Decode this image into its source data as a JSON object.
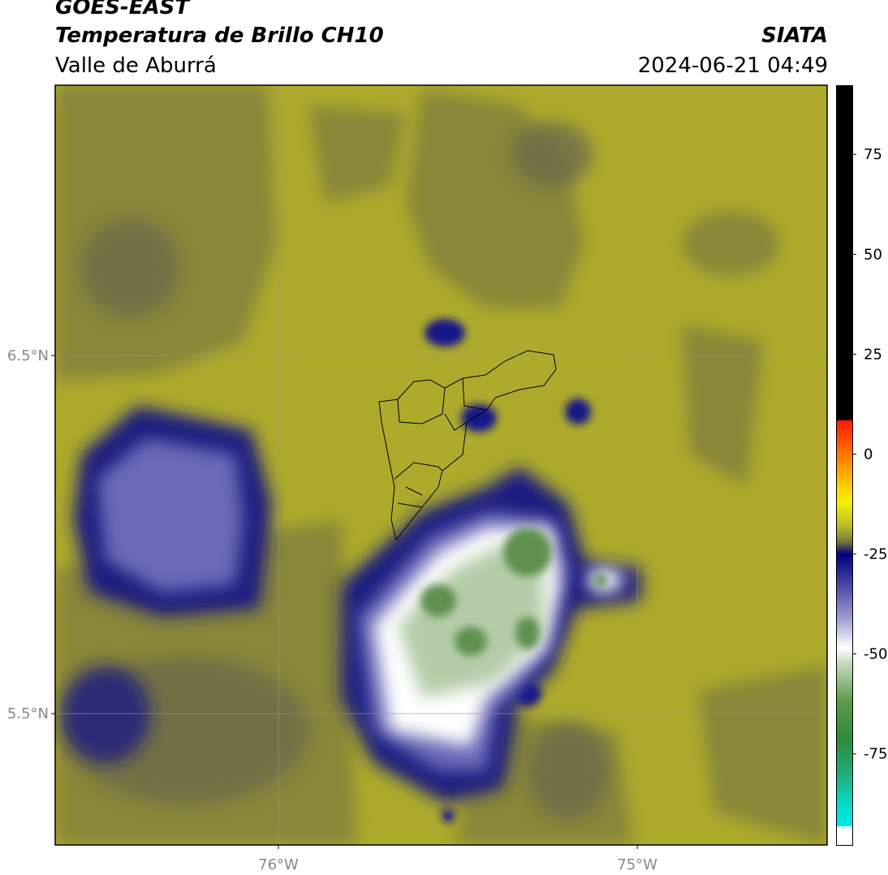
{
  "header": {
    "title": "GOES-EAST",
    "subtitle": "Temperatura de Brillo CH10",
    "region": "Valle de Aburrá",
    "source": "SIATA",
    "timestamp": "2024-06-21 04:49"
  },
  "map": {
    "lat_range": [
      5.133,
      7.255
    ],
    "lon_range": [
      -76.622,
      -74.471
    ],
    "lat_ticks": [
      {
        "value": 6.5,
        "label": "6.5°N"
      },
      {
        "value": 5.5,
        "label": "5.5°N"
      }
    ],
    "lon_ticks": [
      {
        "value": -76,
        "label": "76°W"
      },
      {
        "value": -75,
        "label": "75°W"
      }
    ],
    "grid": true
  },
  "colorbar": {
    "range": [
      -97.8,
      92.3
    ],
    "ticks": [
      75,
      50,
      25,
      0,
      -25,
      -50,
      -75
    ]
  }
}
